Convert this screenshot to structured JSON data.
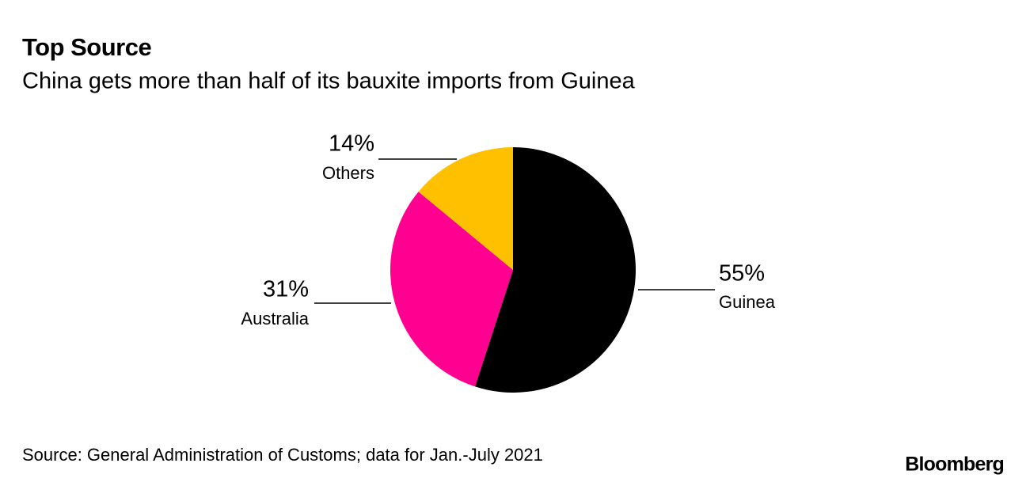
{
  "chart_data": {
    "type": "pie",
    "title": "Top Source",
    "subtitle": "China gets more than half of its bauxite imports from Guinea",
    "categories": [
      "Guinea",
      "Australia",
      "Others"
    ],
    "values": [
      55,
      31,
      14
    ],
    "value_labels": [
      "55%",
      "31%",
      "14%"
    ],
    "colors": [
      "#000000",
      "#ff0090",
      "#ffc000"
    ],
    "source": "Source: General Administration of Customs; data for Jan.-July 2021",
    "brand": "Bloomberg"
  }
}
